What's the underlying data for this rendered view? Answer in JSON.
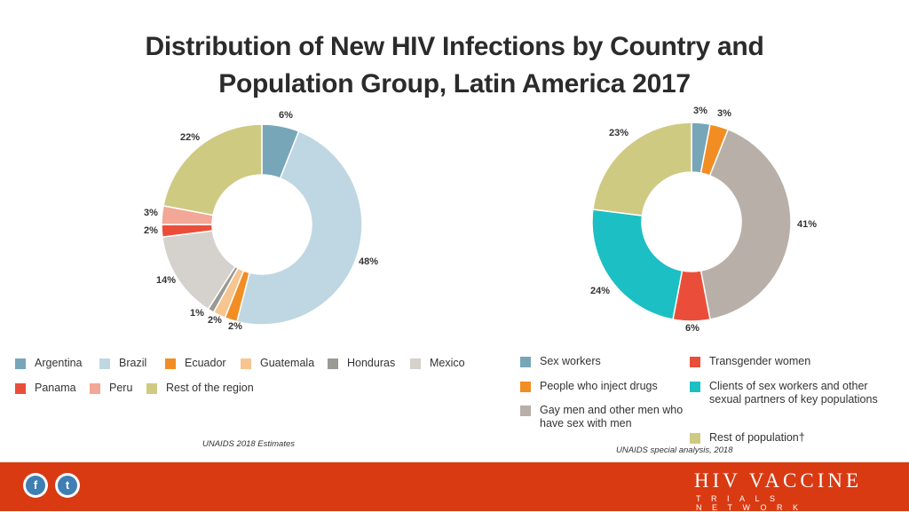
{
  "title_line1": "Distribution of New HIV Infections by Country and",
  "title_line2": "Population Group, Latin America 2017",
  "chart_data": [
    {
      "type": "pie",
      "variant": "donut",
      "labels": [
        "Argentina",
        "Brazil",
        "Ecuador",
        "Guatemala",
        "Honduras",
        "Mexico",
        "Panama",
        "Peru",
        "Rest of the region"
      ],
      "values": [
        6,
        48,
        2,
        2,
        1,
        14,
        2,
        3,
        22
      ],
      "value_labels": [
        "6%",
        "48%",
        "2%",
        "2%",
        "1%",
        "14%",
        "2%",
        "3%",
        "22%"
      ],
      "colors": [
        "#77a6b8",
        "#bfd7e2",
        "#f28d24",
        "#f6c590",
        "#9a9a94",
        "#d5d1cc",
        "#ea4e3a",
        "#f3a796",
        "#cfca82"
      ],
      "source": "UNAIDS 2018 Estimates"
    },
    {
      "type": "pie",
      "variant": "donut",
      "labels": [
        "Sex workers",
        "People who inject drugs",
        "Gay men and other men who have sex with men",
        "Transgender women",
        "Clients of sex workers and other sexual partners of key populations",
        "Rest of population†"
      ],
      "values": [
        3,
        3,
        41,
        6,
        24,
        23
      ],
      "value_labels": [
        "3%",
        "3%",
        "41%",
        "6%",
        "24%",
        "23%"
      ],
      "slice_order": [
        0,
        1,
        2,
        3,
        4,
        5
      ],
      "colors": [
        "#77a6b8",
        "#f28d24",
        "#b8b0a8",
        "#ea4e3a",
        "#1cbfc4",
        "#cfca82"
      ],
      "source": "UNAIDS special analysis, 2018"
    }
  ],
  "footer": {
    "brand_line1": "HIV VACCINE",
    "brand_line2": "TRIALS NETWORK",
    "facebook_glyph": "f",
    "twitter_glyph": "t",
    "color": "#d93a12"
  }
}
